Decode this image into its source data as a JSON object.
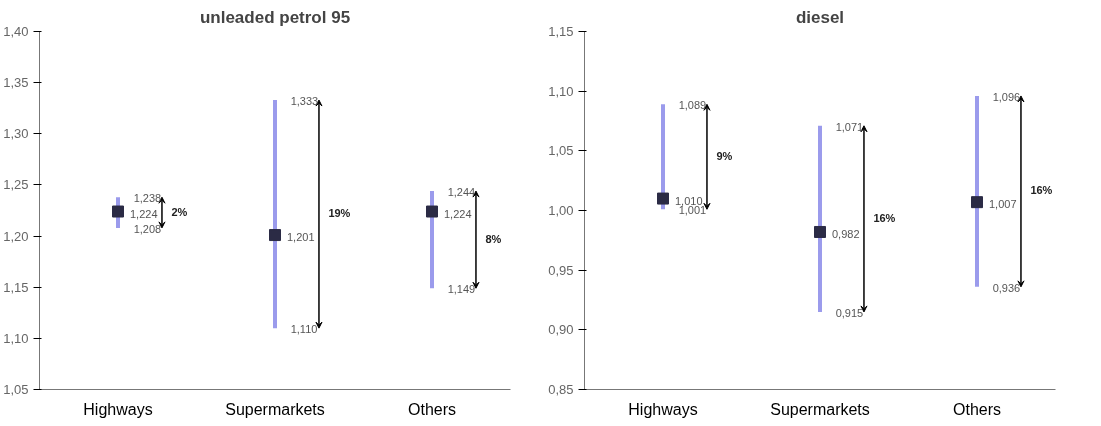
{
  "chart_data": [
    {
      "type": "scatter",
      "title": "unleaded petrol 95",
      "categories": [
        "Highways",
        "Supermarkets",
        "Others"
      ],
      "marker": "square",
      "grid": false,
      "ylim": [
        1.05,
        1.4
      ],
      "yticks": [
        {
          "value": 1.05,
          "label": "1,05"
        },
        {
          "value": 1.1,
          "label": "1,10"
        },
        {
          "value": 1.15,
          "label": "1,15"
        },
        {
          "value": 1.2,
          "label": "1,20"
        },
        {
          "value": 1.25,
          "label": "1,25"
        },
        {
          "value": 1.3,
          "label": "1,30"
        },
        {
          "value": 1.35,
          "label": "1,35"
        },
        {
          "value": 1.4,
          "label": "1,40"
        }
      ],
      "series": [
        {
          "color": "#2b2b45",
          "values": [
            1.224,
            1.201,
            1.224
          ],
          "errors": [
            [
              1.208,
              1.238
            ],
            [
              1.11,
              1.333
            ],
            [
              1.149,
              1.244
            ]
          ],
          "value_labels": [
            "1,224",
            "1,201",
            "1,224"
          ]
        }
      ],
      "annotations": [
        {
          "text": "1,238",
          "x": "Highways",
          "y": 1.238
        },
        {
          "text": "1,208",
          "x": "Highways",
          "y": 1.208
        },
        "2%",
        {
          "text": "1,333",
          "x": "Supermarkets",
          "y": 1.333
        },
        {
          "text": "1,110",
          "x": "Supermarkets",
          "y": 1.11
        },
        "19%",
        {
          "text": "1,244",
          "x": "Others",
          "y": 1.244
        },
        {
          "text": "1,149",
          "x": "Others",
          "y": 1.149
        },
        "8%"
      ]
    },
    {
      "type": "scatter",
      "title": "diesel",
      "categories": [
        "Highways",
        "Supermarkets",
        "Others"
      ],
      "marker": "square",
      "grid": false,
      "ylim": [
        0.85,
        1.15
      ],
      "yticks": [
        {
          "value": 0.85,
          "label": "0,85"
        },
        {
          "value": 0.9,
          "label": "0,90"
        },
        {
          "value": 0.95,
          "label": "0,95"
        },
        {
          "value": 1.0,
          "label": "1,00"
        },
        {
          "value": 1.05,
          "label": "1,05"
        },
        {
          "value": 1.1,
          "label": "1,10"
        },
        {
          "value": 1.15,
          "label": "1,15"
        }
      ],
      "series": [
        {
          "color": "#2b2b45",
          "values": [
            1.01,
            0.982,
            1.007
          ],
          "errors": [
            [
              1.001,
              1.089
            ],
            [
              0.915,
              1.071
            ],
            [
              0.936,
              1.096
            ]
          ],
          "value_labels": [
            "1,010",
            "0,982",
            "1,007"
          ]
        }
      ],
      "annotations": [
        {
          "text": "1,089",
          "x": "Highways",
          "y": 1.089
        },
        {
          "text": "1,001",
          "x": "Highways",
          "y": 1.001
        },
        "9%",
        {
          "text": "1,071",
          "x": "Supermarkets",
          "y": 1.071
        },
        {
          "text": "0,915",
          "x": "Supermarkets",
          "y": 0.915
        },
        "16%",
        {
          "text": "1,096",
          "x": "Others",
          "y": 1.096
        },
        {
          "text": "0,936",
          "x": "Others",
          "y": 0.936
        },
        "16%"
      ]
    }
  ]
}
